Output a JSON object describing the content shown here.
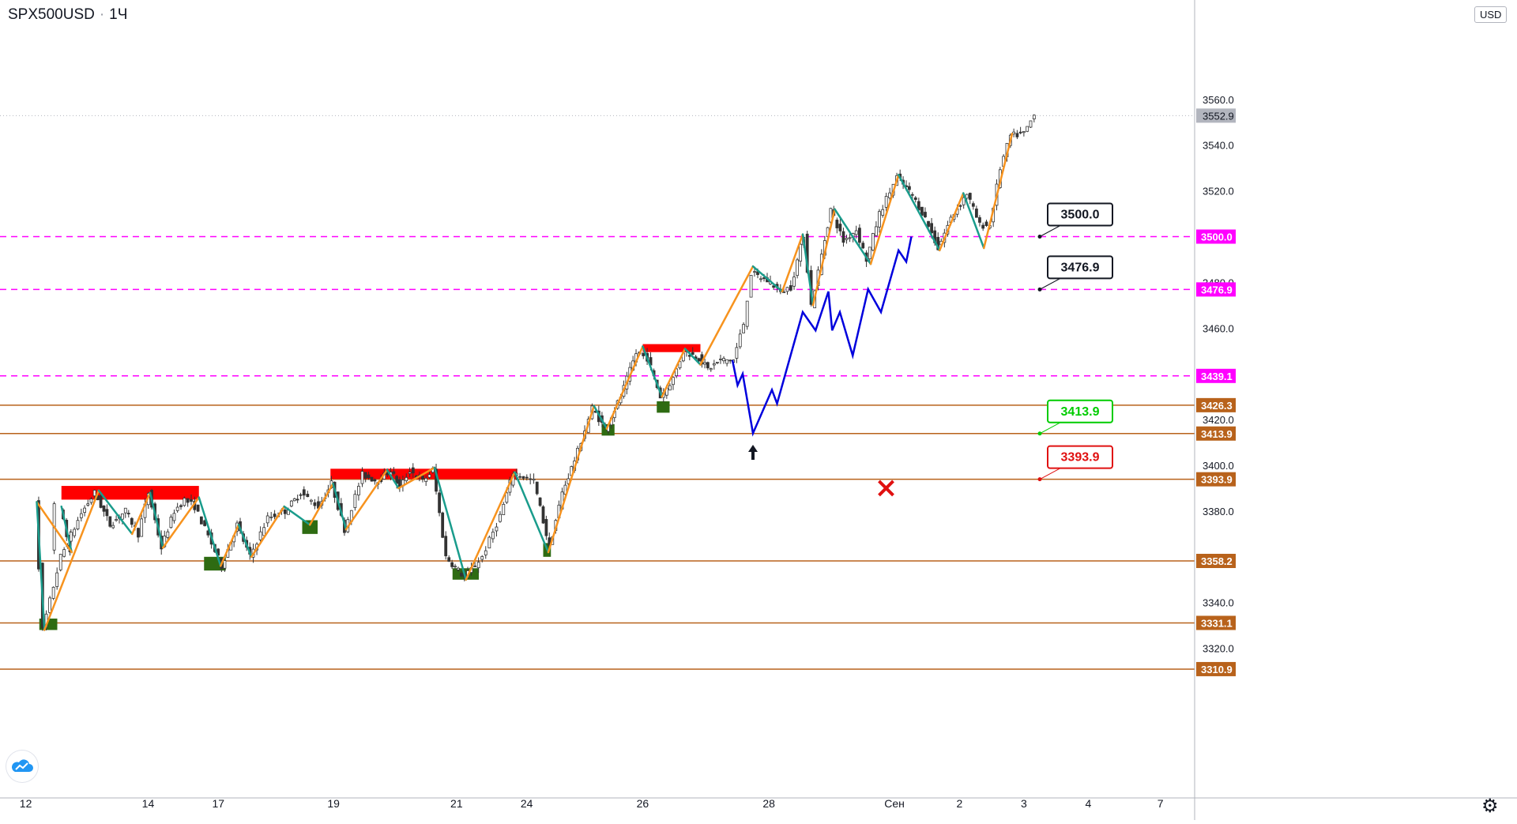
{
  "header": {
    "symbol": "SPX500USD",
    "separator": "·",
    "interval": "1Ч"
  },
  "price_scale": {
    "currency": "USD"
  },
  "colors": {
    "up_candle": "#4a4a4a",
    "zigzag_up": "#f7931e",
    "zigzag_down": "#1a9c8c",
    "supply_zone": "#ff0000",
    "demand_zone": "#2e6b12",
    "level_line": "#b8621b",
    "key_level": "#ff00ff",
    "projection": "#0000dd",
    "target_up": "#00cc00",
    "stop": "#e01010",
    "last_price": "#9598a1"
  },
  "icons": {
    "logo": "tradingview-cloud-icon",
    "settings": "gear-icon",
    "arrow": "up-arrow-icon",
    "stop": "cross-icon"
  },
  "chart_data": {
    "type": "candlestick",
    "title": "",
    "xlabel": "",
    "ylabel": "",
    "ylim": [
      3305,
      3580
    ],
    "y_ticks": [
      "3320.0",
      "3340.0",
      "3360.0",
      "3380.0",
      "3400.0",
      "3420.0",
      "3440.0",
      "3460.0",
      "3480.0",
      "3520.0",
      "3540.0",
      "3560.0"
    ],
    "x_ticks": [
      "12",
      "14",
      "17",
      "19",
      "21",
      "24",
      "26",
      "28",
      "Сен",
      "2",
      "3",
      "4",
      "7"
    ],
    "last_price": {
      "value": 3552.9,
      "label": "3552.9"
    },
    "levels": [
      {
        "value": 3500.0,
        "label": "3500.0",
        "kind": "key"
      },
      {
        "value": 3476.9,
        "label": "3476.9",
        "kind": "key"
      },
      {
        "value": 3439.1,
        "label": "3439.1",
        "kind": "key"
      },
      {
        "value": 3426.3,
        "label": "3426.3",
        "kind": "support"
      },
      {
        "value": 3413.9,
        "label": "3413.9",
        "kind": "support"
      },
      {
        "value": 3393.9,
        "label": "3393.9",
        "kind": "support"
      },
      {
        "value": 3358.2,
        "label": "3358.2",
        "kind": "support"
      },
      {
        "value": 3331.1,
        "label": "3331.1",
        "kind": "support"
      },
      {
        "value": 3310.9,
        "label": "3310.9",
        "kind": "support"
      }
    ],
    "callouts": [
      {
        "label": "3500.0",
        "value": 3500.0,
        "style": "dark"
      },
      {
        "label": "3476.9",
        "value": 3476.9,
        "style": "dark"
      },
      {
        "label": "3413.9",
        "value": 3413.9,
        "style": "green"
      },
      {
        "label": "3393.9",
        "value": 3393.9,
        "style": "red"
      }
    ],
    "price_path": [
      {
        "date": "Aug 11 19:00",
        "price": 3382
      },
      {
        "date": "Aug 11 23:00",
        "price": 3362
      },
      {
        "date": "Aug 12 02:00",
        "price": 3384
      },
      {
        "date": "Aug 12 05:00",
        "price": 3328
      },
      {
        "date": "Aug 12 12:00",
        "price": 3360
      },
      {
        "date": "Aug 12 20:00",
        "price": 3379
      },
      {
        "date": "Aug 13 03:00",
        "price": 3388
      },
      {
        "date": "Aug 13 09:00",
        "price": 3374
      },
      {
        "date": "Aug 13 15:00",
        "price": 3380
      },
      {
        "date": "Aug 13 20:00",
        "price": 3370
      },
      {
        "date": "Aug 14 00:00",
        "price": 3388
      },
      {
        "date": "Aug 14 05:00",
        "price": 3364
      },
      {
        "date": "Aug 14 10:00",
        "price": 3380
      },
      {
        "date": "Aug 14 14:00",
        "price": 3385
      },
      {
        "date": "Aug 14 18:00",
        "price": 3382
      },
      {
        "date": "Aug 17 02:00",
        "price": 3356
      },
      {
        "date": "Aug 17 08:00",
        "price": 3374
      },
      {
        "date": "Aug 17 13:00",
        "price": 3360
      },
      {
        "date": "Aug 17 20:00",
        "price": 3377
      },
      {
        "date": "Aug 18 04:00",
        "price": 3380
      },
      {
        "date": "Aug 18 10:00",
        "price": 3388
      },
      {
        "date": "Aug 18 17:00",
        "price": 3382
      },
      {
        "date": "Aug 18 22:00",
        "price": 3392
      },
      {
        "date": "Aug 19 04:00",
        "price": 3372
      },
      {
        "date": "Aug 19 11:00",
        "price": 3396
      },
      {
        "date": "Aug 19 17:00",
        "price": 3393
      },
      {
        "date": "Aug 19 22:00",
        "price": 3398
      },
      {
        "date": "Aug 20 03:00",
        "price": 3390
      },
      {
        "date": "Aug 20 07:00",
        "price": 3398
      },
      {
        "date": "Aug 20 12:00",
        "price": 3393
      },
      {
        "date": "Aug 20 16:00",
        "price": 3398
      },
      {
        "date": "Aug 20 21:00",
        "price": 3360
      },
      {
        "date": "Aug 21 03:00",
        "price": 3351
      },
      {
        "date": "Aug 21 10:00",
        "price": 3360
      },
      {
        "date": "Aug 21 17:00",
        "price": 3378
      },
      {
        "date": "Aug 21 22:00",
        "price": 3397
      },
      {
        "date": "Aug 24 03:00",
        "price": 3393
      },
      {
        "date": "Aug 24 09:00",
        "price": 3364
      },
      {
        "date": "Aug 24 14:00",
        "price": 3388
      },
      {
        "date": "Aug 24 20:00",
        "price": 3406
      },
      {
        "date": "Aug 25 03:00",
        "price": 3425
      },
      {
        "date": "Aug 25 08:00",
        "price": 3416
      },
      {
        "date": "Aug 25 14:00",
        "price": 3430
      },
      {
        "date": "Aug 25 20:00",
        "price": 3449
      },
      {
        "date": "Aug 26 02:00",
        "price": 3447
      },
      {
        "date": "Aug 26 07:00",
        "price": 3430
      },
      {
        "date": "Aug 26 12:00",
        "price": 3438
      },
      {
        "date": "Aug 26 16:00",
        "price": 3450
      },
      {
        "date": "Aug 26 22:00",
        "price": 3447
      },
      {
        "date": "Aug 27 03:00",
        "price": 3442
      },
      {
        "date": "Aug 27 08:00",
        "price": 3446
      },
      {
        "date": "Aug 27 13:00",
        "price": 3446
      },
      {
        "date": "Aug 27 17:00",
        "price": 3462
      },
      {
        "date": "Aug 27 20:00",
        "price": 3484
      },
      {
        "date": "Aug 28 00:00",
        "price": 3480
      },
      {
        "date": "Aug 28 04:00",
        "price": 3476
      },
      {
        "date": "Aug 28 08:00",
        "price": 3478
      },
      {
        "date": "Aug 28 13:00",
        "price": 3501
      },
      {
        "date": "Aug 28 16:00",
        "price": 3470
      },
      {
        "date": "Aug 28 20:00",
        "price": 3492
      },
      {
        "date": "Aug 31 01:00",
        "price": 3512
      },
      {
        "date": "Aug 31 06:00",
        "price": 3498
      },
      {
        "date": "Aug 31 11:00",
        "price": 3503
      },
      {
        "date": "Aug 31 15:00",
        "price": 3490
      },
      {
        "date": "Aug 31 20:00",
        "price": 3510
      },
      {
        "date": "Sep 1 01:00",
        "price": 3526
      },
      {
        "date": "Sep 1 07:00",
        "price": 3518
      },
      {
        "date": "Sep 1 12:00",
        "price": 3508
      },
      {
        "date": "Sep 1 17:00",
        "price": 3495
      },
      {
        "date": "Sep 1 22:00",
        "price": 3508
      },
      {
        "date": "Sep 2 03:00",
        "price": 3519
      },
      {
        "date": "Sep 2 08:00",
        "price": 3505
      },
      {
        "date": "Sep 2 12:00",
        "price": 3505
      },
      {
        "date": "Sep 2 16:00",
        "price": 3530
      },
      {
        "date": "Sep 2 20:00",
        "price": 3544
      },
      {
        "date": "Sep 3 00:00",
        "price": 3545
      },
      {
        "date": "Sep 3 04:00",
        "price": 3553
      }
    ],
    "zigzag": [
      {
        "date": "Aug 11 19:00",
        "price": 3382
      },
      {
        "date": "Aug 11 23:00",
        "price": 3362
      },
      {
        "date": "Aug 12 02:00",
        "price": 3384
      },
      {
        "date": "Aug 12 05:00",
        "price": 3328
      },
      {
        "date": "Aug 13 04:00",
        "price": 3389
      },
      {
        "date": "Aug 13 17:00",
        "price": 3370
      },
      {
        "date": "Aug 14 00:00",
        "price": 3388
      },
      {
        "date": "Aug 14 05:00",
        "price": 3364
      },
      {
        "date": "Aug 14 19:00",
        "price": 3386
      },
      {
        "date": "Aug 17 01:00",
        "price": 3356
      },
      {
        "date": "Aug 17 08:00",
        "price": 3374
      },
      {
        "date": "Aug 17 13:00",
        "price": 3360
      },
      {
        "date": "Aug 18 03:00",
        "price": 3382
      },
      {
        "date": "Aug 18 13:00",
        "price": 3374
      },
      {
        "date": "Aug 18 22:00",
        "price": 3392
      },
      {
        "date": "Aug 19 04:00",
        "price": 3372
      },
      {
        "date": "Aug 19 20:00",
        "price": 3398
      },
      {
        "date": "Aug 20 02:00",
        "price": 3390
      },
      {
        "date": "Aug 20 16:00",
        "price": 3399
      },
      {
        "date": "Aug 21 03:00",
        "price": 3350
      },
      {
        "date": "Aug 21 22:00",
        "price": 3397
      },
      {
        "date": "Aug 24 08:00",
        "price": 3362
      },
      {
        "date": "Aug 25 03:00",
        "price": 3426
      },
      {
        "date": "Aug 25 08:00",
        "price": 3416
      },
      {
        "date": "Aug 25 22:00",
        "price": 3452
      },
      {
        "date": "Aug 26 07:00",
        "price": 3430
      },
      {
        "date": "Aug 26 16:00",
        "price": 3451
      },
      {
        "date": "Aug 26 22:00",
        "price": 3444
      },
      {
        "date": "Aug 27 20:00",
        "price": 3487
      },
      {
        "date": "Aug 28 04:00",
        "price": 3476
      },
      {
        "date": "Aug 28 12:00",
        "price": 3501
      },
      {
        "date": "Aug 28 16:00",
        "price": 3470
      },
      {
        "date": "Aug 31 02:00",
        "price": 3512
      },
      {
        "date": "Aug 31 16:00",
        "price": 3488
      },
      {
        "date": "Sep 1 01:00",
        "price": 3527
      },
      {
        "date": "Sep 1 17:00",
        "price": 3494
      },
      {
        "date": "Sep 2 01:00",
        "price": 3519
      },
      {
        "date": "Sep 2 09:00",
        "price": 3495
      },
      {
        "date": "Sep 2 20:00",
        "price": 3545
      }
    ],
    "projection": [
      {
        "date": "Aug 27 12:00",
        "price": 3446
      },
      {
        "date": "Aug 27 14:00",
        "price": 3435
      },
      {
        "date": "Aug 27 16:00",
        "price": 3440
      },
      {
        "date": "Aug 27 20:00",
        "price": 3414
      },
      {
        "date": "Aug 28 00:00",
        "price": 3433
      },
      {
        "date": "Aug 28 02:00",
        "price": 3427
      },
      {
        "date": "Aug 28 12:00",
        "price": 3467
      },
      {
        "date": "Aug 28 17:00",
        "price": 3459
      },
      {
        "date": "Aug 28 22:00",
        "price": 3476
      },
      {
        "date": "Aug 31 01:00",
        "price": 3459
      },
      {
        "date": "Aug 31 04:00",
        "price": 3467
      },
      {
        "date": "Aug 31 09:00",
        "price": 3448
      },
      {
        "date": "Aug 31 15:00",
        "price": 3477
      },
      {
        "date": "Aug 31 20:00",
        "price": 3467
      },
      {
        "date": "Sep 1 01:00",
        "price": 3494
      },
      {
        "date": "Sep 1 04:00",
        "price": 3489
      },
      {
        "date": "Sep 1 06:00",
        "price": 3500
      }
    ],
    "supply_zones": [
      {
        "from": "Aug 11 19:00",
        "to": "Aug 14 19:00",
        "low": 3385,
        "high": 3391
      },
      {
        "from": "Aug 18 21:00",
        "to": "Aug 21 23:00",
        "low": 3394,
        "high": 3398.5
      },
      {
        "from": "Aug 25 22:00",
        "to": "Aug 26 22:00",
        "low": 3449.5,
        "high": 3453
      }
    ],
    "demand_zones": [
      {
        "from": "Aug 12 03:00",
        "to": "Aug 12 10:00",
        "low": 3328,
        "high": 3333
      },
      {
        "from": "Aug 14 21:00",
        "to": "Aug 17 03:00",
        "low": 3354,
        "high": 3360
      },
      {
        "from": "Aug 18 10:00",
        "to": "Aug 18 16:00",
        "low": 3370,
        "high": 3376
      },
      {
        "from": "Aug 20 23:00",
        "to": "Aug 21 08:00",
        "low": 3350,
        "high": 3355
      },
      {
        "from": "Aug 24 06:00",
        "to": "Aug 24 09:00",
        "low": 3360,
        "high": 3366
      },
      {
        "from": "Aug 25 06:00",
        "to": "Aug 25 11:00",
        "low": 3413,
        "high": 3418
      },
      {
        "from": "Aug 26 05:00",
        "to": "Aug 26 10:00",
        "low": 3423,
        "high": 3428
      }
    ],
    "markers": [
      {
        "type": "arrow-up",
        "date": "Aug 27 20:00",
        "price": 3409
      },
      {
        "type": "cross",
        "date": "Aug 31 22:00",
        "price": 3390
      }
    ]
  }
}
